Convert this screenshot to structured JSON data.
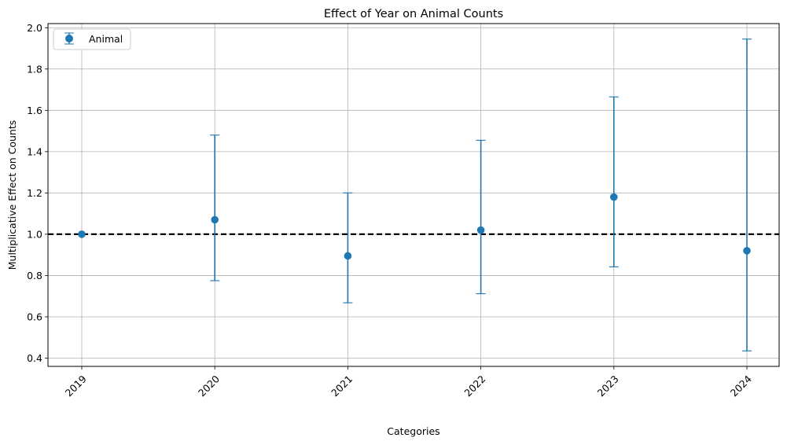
{
  "chart_data": {
    "type": "scatter",
    "title": "Effect of Year on Animal Counts",
    "xlabel": "Categories",
    "ylabel": "Multiplicative Effect on Counts",
    "categories": [
      "2019",
      "2020",
      "2021",
      "2022",
      "2023",
      "2024"
    ],
    "series": [
      {
        "name": "Animal",
        "values": [
          1.0,
          1.07,
          0.895,
          1.02,
          1.18,
          0.92
        ],
        "lower": [
          1.0,
          0.775,
          0.668,
          0.712,
          0.842,
          0.435
        ],
        "upper": [
          1.0,
          1.48,
          1.2,
          1.455,
          1.665,
          1.945
        ]
      }
    ],
    "reference_line": 1.0,
    "ylim": [
      0.36,
      2.02
    ],
    "yticks": [
      "0.4",
      "0.6",
      "0.8",
      "1.0",
      "1.2",
      "1.4",
      "1.6",
      "1.8",
      "2.0"
    ],
    "grid": true,
    "legend_position": "top-left",
    "colors": {
      "series": "#1f77b4",
      "reference_line": "#000000",
      "grid": "#b0b0b0"
    }
  }
}
